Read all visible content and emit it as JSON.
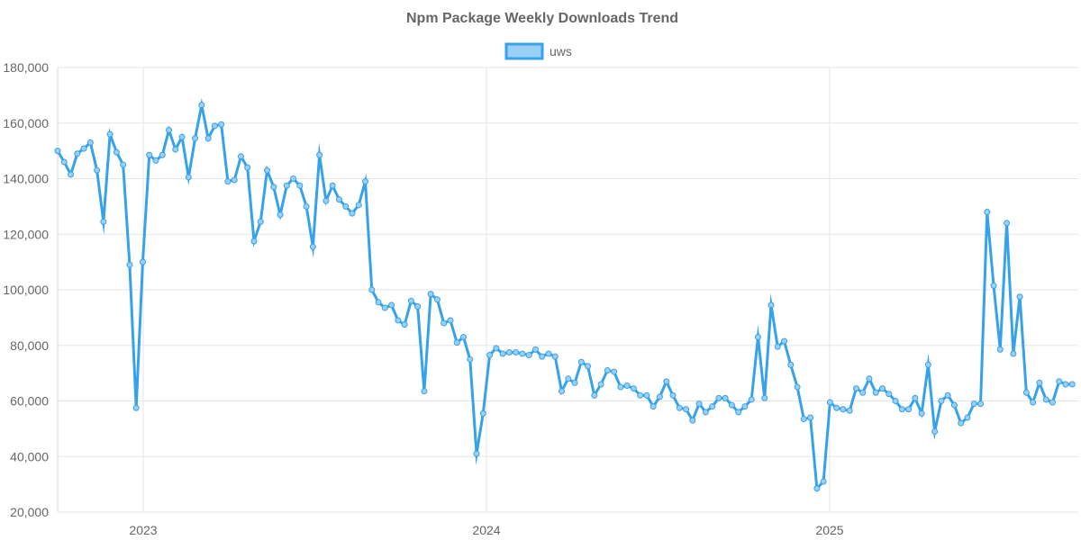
{
  "chart_data": {
    "type": "line",
    "title": "Npm Package Weekly Downloads Trend",
    "xlabel": "",
    "ylabel": "",
    "ylim": [
      20000,
      180000
    ],
    "yticks": [
      "20,000",
      "40,000",
      "60,000",
      "80,000",
      "100,000",
      "120,000",
      "140,000",
      "160,000",
      "180,000"
    ],
    "xticks": [
      "2023",
      "2024",
      "2025"
    ],
    "grid": true,
    "legend_position": "top",
    "colors": {
      "line": "#36a2eb",
      "fill": "#9ad0f5",
      "grid": "#e5e5e5",
      "text": "#666666"
    },
    "series": [
      {
        "name": "uws",
        "values": [
          150000,
          146000,
          141500,
          149000,
          150800,
          153000,
          143000,
          124500,
          156000,
          149500,
          145000,
          109000,
          57500,
          110000,
          148500,
          146500,
          148500,
          157500,
          150500,
          155000,
          140500,
          154500,
          166500,
          154500,
          159000,
          159500,
          139000,
          139500,
          148000,
          144000,
          117500,
          124500,
          143000,
          137000,
          127000,
          137500,
          140000,
          137500,
          130000,
          115500,
          148500,
          132000,
          137500,
          132500,
          130000,
          127500,
          130500,
          139000,
          100000,
          95500,
          93500,
          94500,
          89000,
          87500,
          96000,
          94000,
          63500,
          98500,
          96500,
          88000,
          89000,
          81000,
          83000,
          75000,
          41000,
          55500,
          76500,
          79000,
          77000,
          77500,
          77500,
          77000,
          76500,
          78500,
          76000,
          77000,
          76000,
          63500,
          68000,
          66500,
          74000,
          72500,
          62000,
          66000,
          71000,
          70500,
          65000,
          65500,
          64500,
          62000,
          62000,
          58000,
          61500,
          67000,
          62000,
          57500,
          57000,
          53000,
          59000,
          56000,
          58000,
          61000,
          61000,
          58500,
          56000,
          58000,
          60500,
          83000,
          61000,
          94500,
          79500,
          81500,
          73000,
          65000,
          53500,
          54000,
          28500,
          31000,
          59500,
          57500,
          57000,
          56500,
          64500,
          63000,
          68000,
          63000,
          64500,
          62500,
          60000,
          57000,
          57000,
          61000,
          55500,
          73000,
          49000,
          60000,
          62000,
          58500,
          52000,
          54000,
          59000,
          59000,
          128000,
          101500,
          78500,
          124000,
          77000,
          97500,
          63000,
          59500,
          66500,
          60500,
          59500,
          67000,
          66000,
          66000
        ]
      }
    ]
  }
}
